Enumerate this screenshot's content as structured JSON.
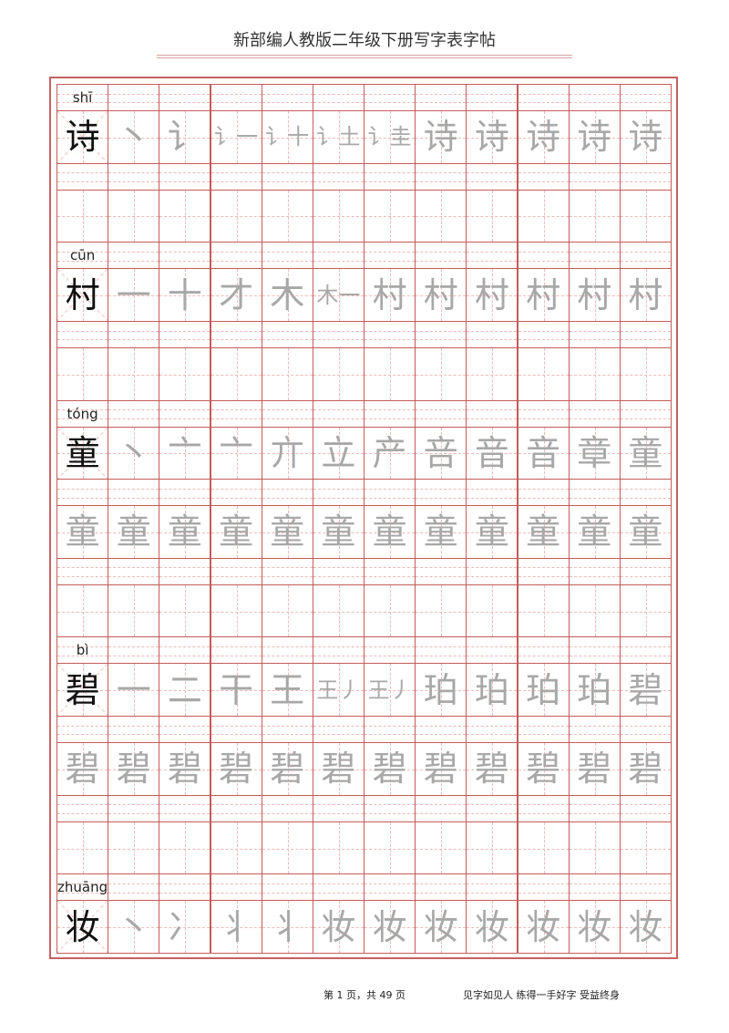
{
  "title": "新部编人教版二年级下册写字表字帖",
  "colors": {
    "grid": "#c65a5a",
    "guide": "#f0b8b8",
    "trace": "#a8a8a8",
    "model": "#111111"
  },
  "rows": [
    {
      "type": "char",
      "pinyin": "shī",
      "model": "诗",
      "strokes": [
        "丶",
        "讠",
        "讠一",
        "讠十",
        "讠土",
        "讠圭",
        "诗",
        "诗",
        "诗",
        "诗",
        "诗"
      ]
    },
    {
      "type": "empty"
    },
    {
      "type": "char",
      "pinyin": "cūn",
      "model": "村",
      "strokes": [
        "一",
        "十",
        "才",
        "木",
        "木一",
        "村",
        "村",
        "村",
        "村",
        "村",
        "村"
      ]
    },
    {
      "type": "empty"
    },
    {
      "type": "char",
      "pinyin": "tóng",
      "model": "童",
      "strokes": [
        "丶",
        "亠",
        "亠",
        "亣",
        "立",
        "产",
        "咅",
        "音",
        "音",
        "章",
        "童"
      ]
    },
    {
      "type": "trace",
      "char": "童"
    },
    {
      "type": "empty"
    },
    {
      "type": "char",
      "pinyin": "bì",
      "model": "碧",
      "strokes": [
        "一",
        "二",
        "干",
        "王",
        "王丿",
        "王丿",
        "珀",
        "珀",
        "珀",
        "珀",
        "碧"
      ]
    },
    {
      "type": "trace",
      "char": "碧"
    },
    {
      "type": "empty"
    },
    {
      "type": "char",
      "pinyin": "zhuāng",
      "model": "妆",
      "strokes": [
        "丶",
        "冫",
        "丬",
        "丬",
        "妆",
        "妆",
        "妆",
        "妆",
        "妆",
        "妆",
        "妆"
      ]
    }
  ],
  "footer": {
    "page": "第 1 页，共 49 页",
    "motto": "见字如见人  练得一手好字  受益终身"
  }
}
